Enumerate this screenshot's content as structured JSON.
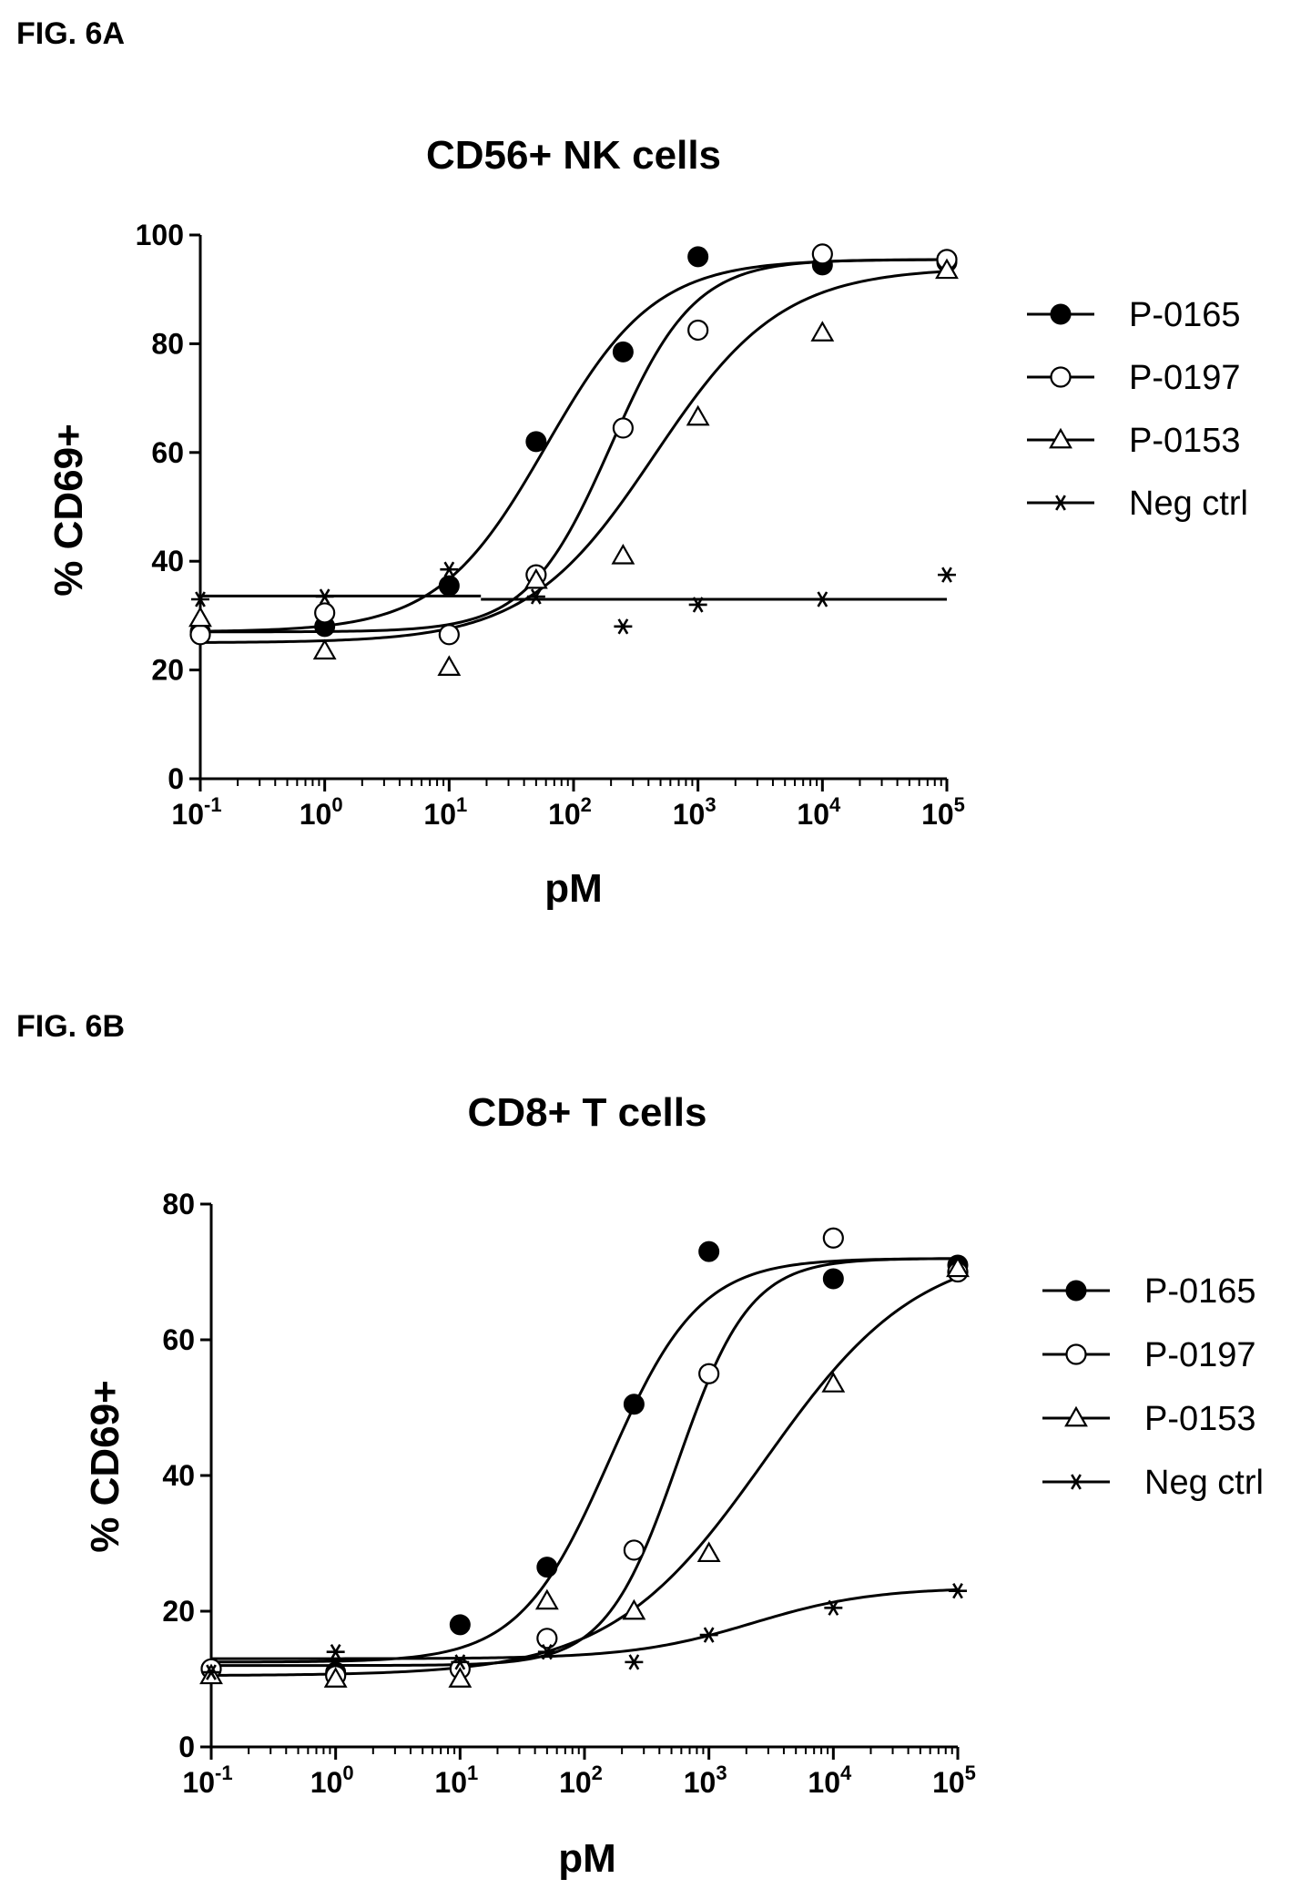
{
  "chart_data": [
    {
      "type": "scatter",
      "figure_label": "FIG. 6A",
      "title": "CD56+ NK cells",
      "xlabel": "pM",
      "ylabel": "% CD69+",
      "xscale": "log",
      "xlim": [
        0.1,
        100000
      ],
      "ylim": [
        0,
        100
      ],
      "xticks": [
        0.1,
        1,
        10,
        100,
        1000,
        10000,
        100000
      ],
      "xtick_labels": [
        {
          "base": "10",
          "exp": "-1"
        },
        {
          "base": "10",
          "exp": "0"
        },
        {
          "base": "10",
          "exp": "1"
        },
        {
          "base": "10",
          "exp": "2"
        },
        {
          "base": "10",
          "exp": "3"
        },
        {
          "base": "10",
          "exp": "4"
        },
        {
          "base": "10",
          "exp": "5"
        }
      ],
      "yticks": [
        0,
        20,
        40,
        60,
        80,
        100
      ],
      "grid": false,
      "legend_position": "right",
      "series": [
        {
          "name": "P-0165",
          "marker": "filled-circle",
          "x": [
            0.1,
            1,
            10,
            50,
            250,
            1000,
            10000,
            100000
          ],
          "y": [
            27,
            28,
            35.5,
            62,
            78.5,
            96,
            94.5,
            95
          ],
          "fit": {
            "bottom": 27,
            "top": 95.5,
            "logec50": 1.78,
            "hill": 1.0
          }
        },
        {
          "name": "P-0197",
          "marker": "open-circle",
          "x": [
            0.1,
            1,
            10,
            50,
            250,
            1000,
            10000,
            100000
          ],
          "y": [
            26.5,
            30.5,
            26.5,
            37.5,
            64.5,
            82.5,
            96.5,
            95.5
          ],
          "fit": {
            "bottom": 27,
            "top": 95.5,
            "logec50": 2.3,
            "hill": 1.3
          }
        },
        {
          "name": "P-0153",
          "marker": "open-triangle",
          "x": [
            0.1,
            1,
            10,
            50,
            250,
            1000,
            10000,
            100000
          ],
          "y": [
            29.5,
            23.5,
            20.5,
            36.5,
            41,
            66.5,
            82,
            93.5
          ],
          "fit": {
            "bottom": 25,
            "top": 94,
            "logec50": 2.65,
            "hill": 0.85
          }
        },
        {
          "name": "Neg ctrl",
          "marker": "asterisk",
          "x": [
            0.1,
            1,
            10,
            50,
            250,
            1000,
            10000,
            100000
          ],
          "y": [
            33,
            33.5,
            38.5,
            33.5,
            28,
            32,
            33,
            37.5
          ],
          "fit": {
            "segments": [
              [
                0.1,
                33.6,
                18,
                33.6
              ],
              [
                18,
                33.0,
                100000,
                33.0
              ]
            ]
          }
        }
      ]
    },
    {
      "type": "scatter",
      "figure_label": "FIG. 6B",
      "title": "CD8+ T cells",
      "xlabel": "pM",
      "ylabel": "% CD69+",
      "xscale": "log",
      "xlim": [
        0.1,
        100000
      ],
      "ylim": [
        0,
        80
      ],
      "xticks": [
        0.1,
        1,
        10,
        100,
        1000,
        10000,
        100000
      ],
      "xtick_labels": [
        {
          "base": "10",
          "exp": "-1"
        },
        {
          "base": "10",
          "exp": "0"
        },
        {
          "base": "10",
          "exp": "1"
        },
        {
          "base": "10",
          "exp": "2"
        },
        {
          "base": "10",
          "exp": "3"
        },
        {
          "base": "10",
          "exp": "4"
        },
        {
          "base": "10",
          "exp": "5"
        }
      ],
      "yticks": [
        0,
        20,
        40,
        60,
        80
      ],
      "grid": false,
      "legend_position": "right",
      "series": [
        {
          "name": "P-0165",
          "marker": "filled-circle",
          "x": [
            0.1,
            1,
            10,
            50,
            250,
            1000,
            10000,
            100000
          ],
          "y": [
            11.5,
            11,
            18,
            26.5,
            50.5,
            73,
            69,
            71
          ],
          "fit": {
            "bottom": 12.5,
            "top": 72,
            "logec50": 2.2,
            "hill": 1.2
          }
        },
        {
          "name": "P-0197",
          "marker": "open-circle",
          "x": [
            0.1,
            1,
            10,
            50,
            250,
            1000,
            10000,
            100000
          ],
          "y": [
            11.5,
            10.5,
            11.5,
            16,
            29,
            55,
            75,
            70
          ],
          "fit": {
            "bottom": 12,
            "top": 72,
            "logec50": 2.75,
            "hill": 1.5
          }
        },
        {
          "name": "P-0153",
          "marker": "open-triangle",
          "x": [
            0.1,
            1,
            10,
            50,
            250,
            1000,
            10000,
            100000
          ],
          "y": [
            10.5,
            10,
            10,
            21.5,
            20,
            28.5,
            53.5,
            70.5
          ],
          "fit": {
            "bottom": 10.5,
            "top": 74,
            "logec50": 3.45,
            "hill": 0.7
          }
        },
        {
          "name": "Neg ctrl",
          "marker": "asterisk",
          "x": [
            0.1,
            1,
            10,
            50,
            250,
            1000,
            10000,
            100000
          ],
          "y": [
            11,
            14,
            12.5,
            14,
            12.5,
            16.5,
            20.5,
            23
          ],
          "fit": {
            "bottom": 13,
            "top": 23.5,
            "logec50": 3.35,
            "hill": 0.9
          }
        }
      ]
    }
  ]
}
